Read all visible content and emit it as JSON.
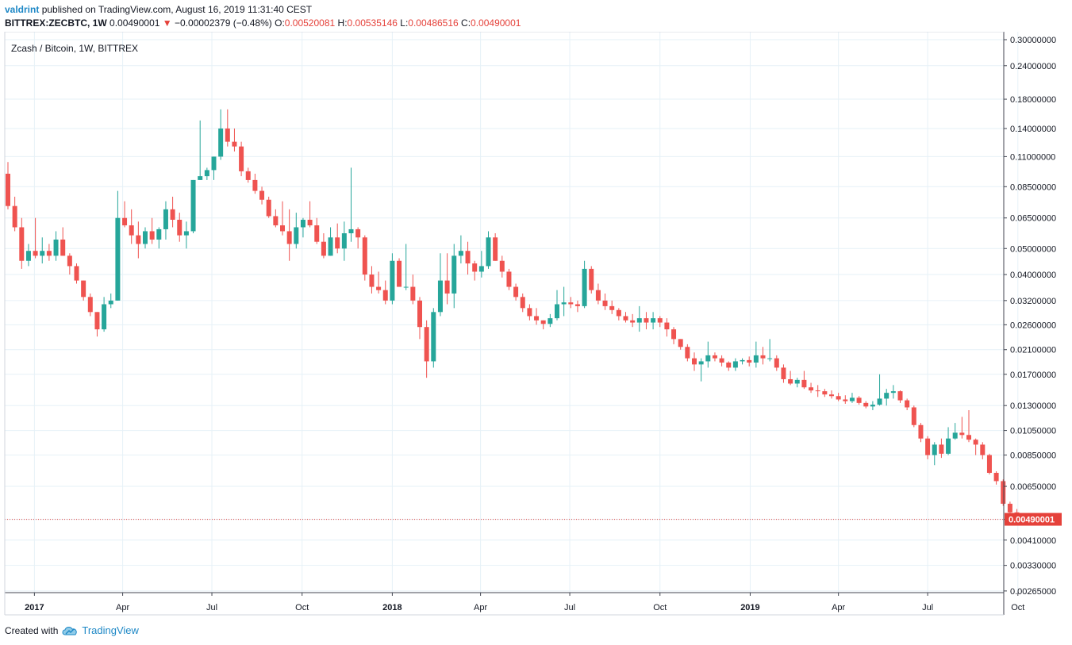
{
  "header": {
    "author": "valdrint",
    "published_text": "published on TradingView.com, August 16, 2019 11:31:40 CEST",
    "symbol": "BITTREX:ZECBTC, 1W",
    "last_price": "0.00490001",
    "change_arrow": "▼",
    "change": "−0.00002379 (−0.48%)",
    "o_label": "O:",
    "o_value": "0.00520081",
    "h_label": "H:",
    "h_value": "0.00535146",
    "l_label": "L:",
    "l_value": "0.00486516",
    "c_label": "C:",
    "c_value": "0.00490001"
  },
  "footer": {
    "created_with": "Created with",
    "brand": "TradingView"
  },
  "colors": {
    "up": "#26a69a",
    "down": "#ef5350",
    "grid": "#e6f1f7",
    "axis": "#434651",
    "last_price_line": "#e5413a"
  },
  "chart_data": {
    "type": "candlestick",
    "title": "Zcash / Bitcoin, 1W, BITTREX",
    "y_scale": "log",
    "ylim": [
      0.00263,
      0.3
    ],
    "y_ticks": [
      0.3,
      0.24,
      0.18,
      0.14,
      0.11,
      0.085,
      0.065,
      0.05,
      0.04,
      0.032,
      0.026,
      0.021,
      0.017,
      0.013,
      0.0105,
      0.0085,
      0.0065,
      0.0049,
      0.0041,
      0.0033,
      0.00265
    ],
    "y_tick_labels": [
      "0.30000000",
      "0.24000000",
      "0.18000000",
      "0.14000000",
      "0.11000000",
      "0.08500000",
      "0.06500000",
      "0.05000000",
      "0.04000000",
      "0.03200000",
      "0.02600000",
      "0.02100000",
      "0.01700000",
      "0.01300000",
      "0.01050000",
      "0.00850000",
      "0.00650000",
      "",
      "0.00410000",
      "0.00330000",
      "0.00265000"
    ],
    "x_start": "2016-12-05",
    "x_ticks": [
      {
        "label": "2017",
        "date": "2017-01-01",
        "year": true
      },
      {
        "label": "Apr",
        "date": "2017-04-01",
        "year": false
      },
      {
        "label": "Jul",
        "date": "2017-07-01",
        "year": false
      },
      {
        "label": "Oct",
        "date": "2017-10-01",
        "year": false
      },
      {
        "label": "2018",
        "date": "2018-01-01",
        "year": true
      },
      {
        "label": "Apr",
        "date": "2018-04-01",
        "year": false
      },
      {
        "label": "Jul",
        "date": "2018-07-01",
        "year": false
      },
      {
        "label": "Oct",
        "date": "2018-10-01",
        "year": false
      },
      {
        "label": "2019",
        "date": "2019-01-01",
        "year": true
      },
      {
        "label": "Apr",
        "date": "2019-04-01",
        "year": false
      },
      {
        "label": "Jul",
        "date": "2019-07-01",
        "year": false
      },
      {
        "label": "Oct",
        "date": "2019-10-01",
        "year": false
      }
    ],
    "last_price": 0.00490001,
    "last_price_label": "0.00490001",
    "candles": [
      [
        0.095,
        0.105,
        0.07,
        0.072
      ],
      [
        0.072,
        0.078,
        0.058,
        0.06
      ],
      [
        0.06,
        0.065,
        0.042,
        0.045
      ],
      [
        0.045,
        0.052,
        0.043,
        0.049
      ],
      [
        0.049,
        0.065,
        0.046,
        0.047
      ],
      [
        0.047,
        0.055,
        0.044,
        0.049
      ],
      [
        0.049,
        0.052,
        0.045,
        0.047
      ],
      [
        0.047,
        0.058,
        0.045,
        0.054
      ],
      [
        0.054,
        0.06,
        0.047,
        0.047
      ],
      [
        0.047,
        0.048,
        0.04,
        0.043
      ],
      [
        0.043,
        0.044,
        0.037,
        0.038
      ],
      [
        0.038,
        0.038,
        0.032,
        0.033
      ],
      [
        0.033,
        0.034,
        0.028,
        0.029
      ],
      [
        0.029,
        0.029,
        0.0235,
        0.025
      ],
      [
        0.025,
        0.033,
        0.0245,
        0.031
      ],
      [
        0.031,
        0.034,
        0.03,
        0.032
      ],
      [
        0.032,
        0.082,
        0.032,
        0.065
      ],
      [
        0.065,
        0.075,
        0.06,
        0.061
      ],
      [
        0.061,
        0.07,
        0.052,
        0.056
      ],
      [
        0.056,
        0.063,
        0.046,
        0.052
      ],
      [
        0.052,
        0.06,
        0.05,
        0.058
      ],
      [
        0.058,
        0.065,
        0.052,
        0.054
      ],
      [
        0.054,
        0.06,
        0.05,
        0.059
      ],
      [
        0.059,
        0.075,
        0.054,
        0.07
      ],
      [
        0.07,
        0.078,
        0.06,
        0.064
      ],
      [
        0.064,
        0.068,
        0.053,
        0.056
      ],
      [
        0.056,
        0.063,
        0.05,
        0.058
      ],
      [
        0.058,
        0.09,
        0.057,
        0.09
      ],
      [
        0.09,
        0.15,
        0.09,
        0.093
      ],
      [
        0.093,
        0.1,
        0.09,
        0.098
      ],
      [
        0.098,
        0.11,
        0.09,
        0.11
      ],
      [
        0.11,
        0.165,
        0.107,
        0.14
      ],
      [
        0.14,
        0.165,
        0.12,
        0.125
      ],
      [
        0.125,
        0.14,
        0.115,
        0.12
      ],
      [
        0.12,
        0.125,
        0.093,
        0.097
      ],
      [
        0.097,
        0.1,
        0.088,
        0.09
      ],
      [
        0.09,
        0.095,
        0.08,
        0.082
      ],
      [
        0.082,
        0.085,
        0.073,
        0.076
      ],
      [
        0.076,
        0.078,
        0.065,
        0.066
      ],
      [
        0.066,
        0.07,
        0.06,
        0.061
      ],
      [
        0.061,
        0.075,
        0.056,
        0.058
      ],
      [
        0.058,
        0.07,
        0.045,
        0.052
      ],
      [
        0.052,
        0.068,
        0.05,
        0.06
      ],
      [
        0.06,
        0.065,
        0.055,
        0.064
      ],
      [
        0.064,
        0.075,
        0.06,
        0.061
      ],
      [
        0.061,
        0.065,
        0.052,
        0.053
      ],
      [
        0.053,
        0.057,
        0.046,
        0.047
      ],
      [
        0.047,
        0.06,
        0.047,
        0.055
      ],
      [
        0.055,
        0.062,
        0.048,
        0.05
      ],
      [
        0.05,
        0.063,
        0.045,
        0.057
      ],
      [
        0.057,
        0.1,
        0.053,
        0.059
      ],
      [
        0.059,
        0.06,
        0.05,
        0.055
      ],
      [
        0.055,
        0.056,
        0.038,
        0.04
      ],
      [
        0.04,
        0.043,
        0.034,
        0.036
      ],
      [
        0.036,
        0.041,
        0.034,
        0.035
      ],
      [
        0.035,
        0.038,
        0.031,
        0.032
      ],
      [
        0.032,
        0.048,
        0.031,
        0.045
      ],
      [
        0.045,
        0.046,
        0.036,
        0.036
      ],
      [
        0.036,
        0.052,
        0.035,
        0.036
      ],
      [
        0.036,
        0.04,
        0.031,
        0.032
      ],
      [
        0.032,
        0.033,
        0.023,
        0.0255
      ],
      [
        0.0255,
        0.027,
        0.0165,
        0.019
      ],
      [
        0.019,
        0.03,
        0.018,
        0.029
      ],
      [
        0.029,
        0.048,
        0.028,
        0.038
      ],
      [
        0.038,
        0.048,
        0.031,
        0.034
      ],
      [
        0.034,
        0.052,
        0.03,
        0.047
      ],
      [
        0.047,
        0.056,
        0.044,
        0.049
      ],
      [
        0.049,
        0.053,
        0.04,
        0.044
      ],
      [
        0.044,
        0.045,
        0.038,
        0.041
      ],
      [
        0.041,
        0.049,
        0.039,
        0.043
      ],
      [
        0.043,
        0.058,
        0.042,
        0.055
      ],
      [
        0.055,
        0.057,
        0.045,
        0.045
      ],
      [
        0.045,
        0.047,
        0.039,
        0.041
      ],
      [
        0.041,
        0.042,
        0.035,
        0.036
      ],
      [
        0.036,
        0.037,
        0.032,
        0.033
      ],
      [
        0.033,
        0.034,
        0.029,
        0.03
      ],
      [
        0.03,
        0.031,
        0.027,
        0.028
      ],
      [
        0.028,
        0.03,
        0.026,
        0.027
      ],
      [
        0.027,
        0.027,
        0.025,
        0.0262
      ],
      [
        0.0262,
        0.0285,
        0.0255,
        0.0275
      ],
      [
        0.0275,
        0.035,
        0.027,
        0.031
      ],
      [
        0.031,
        0.036,
        0.028,
        0.0315
      ],
      [
        0.0315,
        0.033,
        0.03,
        0.031
      ],
      [
        0.031,
        0.032,
        0.029,
        0.0305
      ],
      [
        0.0305,
        0.045,
        0.03,
        0.042
      ],
      [
        0.042,
        0.043,
        0.034,
        0.035
      ],
      [
        0.035,
        0.037,
        0.031,
        0.032
      ],
      [
        0.032,
        0.034,
        0.0295,
        0.0305
      ],
      [
        0.0305,
        0.032,
        0.0285,
        0.0295
      ],
      [
        0.0295,
        0.03,
        0.027,
        0.028
      ],
      [
        0.028,
        0.029,
        0.0265,
        0.027
      ],
      [
        0.027,
        0.0285,
        0.0255,
        0.0265
      ],
      [
        0.0265,
        0.0305,
        0.0245,
        0.0275
      ],
      [
        0.0275,
        0.029,
        0.025,
        0.0265
      ],
      [
        0.0265,
        0.029,
        0.025,
        0.0275
      ],
      [
        0.0275,
        0.028,
        0.0255,
        0.0265
      ],
      [
        0.0265,
        0.0275,
        0.0235,
        0.025
      ],
      [
        0.025,
        0.0255,
        0.022,
        0.023
      ],
      [
        0.023,
        0.023,
        0.021,
        0.0215
      ],
      [
        0.0215,
        0.022,
        0.019,
        0.0195
      ],
      [
        0.0195,
        0.0205,
        0.0175,
        0.0185
      ],
      [
        0.0185,
        0.0195,
        0.016,
        0.019
      ],
      [
        0.019,
        0.0225,
        0.018,
        0.02
      ],
      [
        0.02,
        0.0205,
        0.019,
        0.0195
      ],
      [
        0.0195,
        0.02,
        0.0182,
        0.0188
      ],
      [
        0.0188,
        0.019,
        0.0175,
        0.018
      ],
      [
        0.018,
        0.0195,
        0.0175,
        0.019
      ],
      [
        0.019,
        0.0195,
        0.0185,
        0.0192
      ],
      [
        0.0192,
        0.0198,
        0.0182,
        0.0188
      ],
      [
        0.0188,
        0.0225,
        0.018,
        0.02
      ],
      [
        0.02,
        0.0215,
        0.0185,
        0.0195
      ],
      [
        0.0195,
        0.023,
        0.019,
        0.0195
      ],
      [
        0.0195,
        0.02,
        0.0175,
        0.018
      ],
      [
        0.018,
        0.0185,
        0.0158,
        0.0163
      ],
      [
        0.0163,
        0.0175,
        0.0155,
        0.0157
      ],
      [
        0.0157,
        0.0165,
        0.0152,
        0.0162
      ],
      [
        0.0162,
        0.0175,
        0.015,
        0.0152
      ],
      [
        0.0152,
        0.0158,
        0.0145,
        0.0148
      ],
      [
        0.0148,
        0.0155,
        0.014,
        0.0147
      ],
      [
        0.0147,
        0.015,
        0.014,
        0.0143
      ],
      [
        0.0143,
        0.0148,
        0.0138,
        0.0141
      ],
      [
        0.0141,
        0.0145,
        0.0135,
        0.0137
      ],
      [
        0.0137,
        0.0142,
        0.0132,
        0.0135
      ],
      [
        0.0135,
        0.0145,
        0.0133,
        0.0139
      ],
      [
        0.0139,
        0.0141,
        0.0131,
        0.0133
      ],
      [
        0.0133,
        0.0135,
        0.0127,
        0.0129
      ],
      [
        0.0129,
        0.0135,
        0.0125,
        0.0131
      ],
      [
        0.0131,
        0.017,
        0.013,
        0.0138
      ],
      [
        0.0138,
        0.015,
        0.013,
        0.0145
      ],
      [
        0.0145,
        0.0155,
        0.0138,
        0.0147
      ],
      [
        0.0147,
        0.0148,
        0.0133,
        0.0136
      ],
      [
        0.0136,
        0.0138,
        0.0125,
        0.0128
      ],
      [
        0.0128,
        0.013,
        0.0108,
        0.011
      ],
      [
        0.011,
        0.0112,
        0.0095,
        0.0098
      ],
      [
        0.0098,
        0.01,
        0.0082,
        0.0085
      ],
      [
        0.0085,
        0.0095,
        0.0078,
        0.0093
      ],
      [
        0.0093,
        0.0098,
        0.0083,
        0.0086
      ],
      [
        0.0086,
        0.0108,
        0.0085,
        0.0098
      ],
      [
        0.0098,
        0.0112,
        0.0097,
        0.0103
      ],
      [
        0.0103,
        0.0118,
        0.0098,
        0.0101
      ],
      [
        0.0101,
        0.0125,
        0.0095,
        0.0097
      ],
      [
        0.0097,
        0.0098,
        0.0085,
        0.0093
      ],
      [
        0.0093,
        0.0095,
        0.0082,
        0.0085
      ],
      [
        0.0085,
        0.0086,
        0.0072,
        0.0073
      ],
      [
        0.0073,
        0.0074,
        0.0066,
        0.0068
      ],
      [
        0.0068,
        0.0069,
        0.0055,
        0.0056
      ],
      [
        0.0056,
        0.0057,
        0.005,
        0.0052
      ],
      [
        0.00520081,
        0.00535146,
        0.00486516,
        0.00490001
      ]
    ]
  }
}
